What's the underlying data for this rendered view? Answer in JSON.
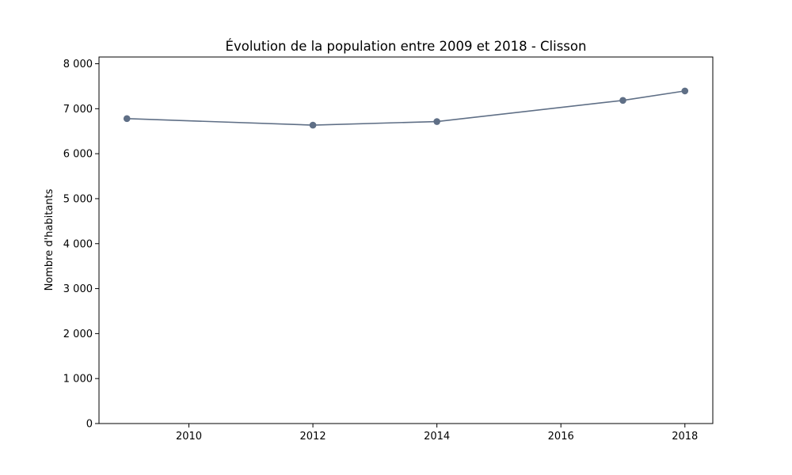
{
  "chart_data": {
    "type": "line",
    "title": "Évolution de la population entre 2009 et 2018 - Clisson",
    "xlabel": "",
    "ylabel": "Nombre d'habitants",
    "x": [
      2009,
      2012,
      2014,
      2017,
      2018
    ],
    "series": [
      {
        "values": [
          6780,
          6635,
          6715,
          7185,
          7395
        ]
      }
    ],
    "xlim": [
      2008.55,
      2018.45
    ],
    "ylim": [
      0,
      8150
    ],
    "xticks": [
      2010,
      2012,
      2014,
      2016,
      2018
    ],
    "xtick_labels": [
      "2010",
      "2012",
      "2014",
      "2016",
      "2018"
    ],
    "yticks": [
      0,
      1000,
      2000,
      3000,
      4000,
      5000,
      6000,
      7000,
      8000
    ],
    "ytick_labels": [
      "0",
      "1 000",
      "2 000",
      "3 000",
      "4 000",
      "5 000",
      "6 000",
      "7 000",
      "8 000"
    ],
    "grid": false,
    "legend": false,
    "line_color": "#5f6f86",
    "marker": "circle"
  }
}
